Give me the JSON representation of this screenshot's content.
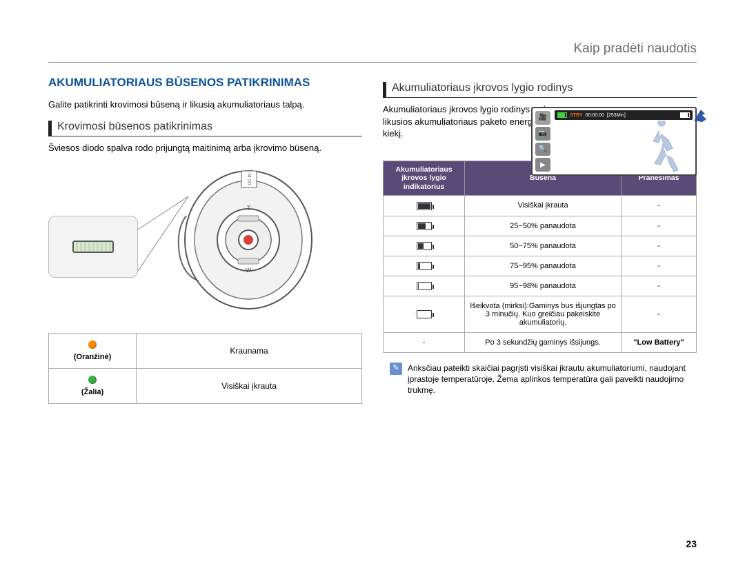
{
  "breadcrumb": "Kaip pradėti naudotis",
  "page_number": "23",
  "left": {
    "main_heading": "AKUMULIATORIAUS BŪSENOS PATIKRINIMAS",
    "intro": "Galite patikrinti krovimosi būseną ir likusią akumuliatoriaus talpą.",
    "sub_heading": "Krovimosi būsenos patikrinimas",
    "sub_text": "Šviesos diodo spalva rodo prijungtą maitinimą arba įkrovimo būseną.",
    "table": {
      "rows": [
        {
          "dot_color": "#ff8c00",
          "label": "(Oranžinė)",
          "status": "Kraunama"
        },
        {
          "dot_color": "#3cb043",
          "label": "(Žalia)",
          "status": "Visiškai įkrauta"
        }
      ]
    }
  },
  "right": {
    "sub_heading": "Akumuliatoriaus įkrovos lygio rodinys",
    "intro": "Akumuliatoriaus įkrovos lygio rodinys rodo likusios akumuliatoriaus paketo energijos kiekį.",
    "screen": {
      "stby": "STBY",
      "time": "00:00:00",
      "remain": "[253Min]"
    },
    "table": {
      "headers": [
        "Akumuliatoriaus įkrovos lygio indikatorius",
        "Būsena",
        "Pranešimas"
      ],
      "rows": [
        {
          "fill_pct": 100,
          "status": "Visiškai įkrauta",
          "msg": "-"
        },
        {
          "fill_pct": 65,
          "status": "25~50% panaudota",
          "msg": "-"
        },
        {
          "fill_pct": 45,
          "status": "50~75% panaudota",
          "msg": "-"
        },
        {
          "fill_pct": 20,
          "status": "75~95% panaudota",
          "msg": "-"
        },
        {
          "fill_pct": 5,
          "status": "95~98% panaudota",
          "msg": "-"
        },
        {
          "fill_pct": 0,
          "blink": true,
          "status": "Išeikvota (mirksi):Gaminys bus išjungtas po 3 minučių. Kuo greičiau pakeiskite akumuliatorių.",
          "msg": "-"
        },
        {
          "no_icon": true,
          "icon_text": "-",
          "status": "Po 3 sekundžių gaminys išsijungs.",
          "msg": "\"Low Battery\"",
          "msg_bold": true
        }
      ]
    },
    "note": "Anksčiau pateikti skaičiai pagrįsti visiškai įkrautu akumuliatoriumi, naudojant įprastoje temperatūroje. Žema aplinkos temperatūra gali paveikti naudojimo trukmę."
  },
  "colors": {
    "heading_blue": "#0a529c",
    "table_header_bg": "#5a4a78"
  }
}
